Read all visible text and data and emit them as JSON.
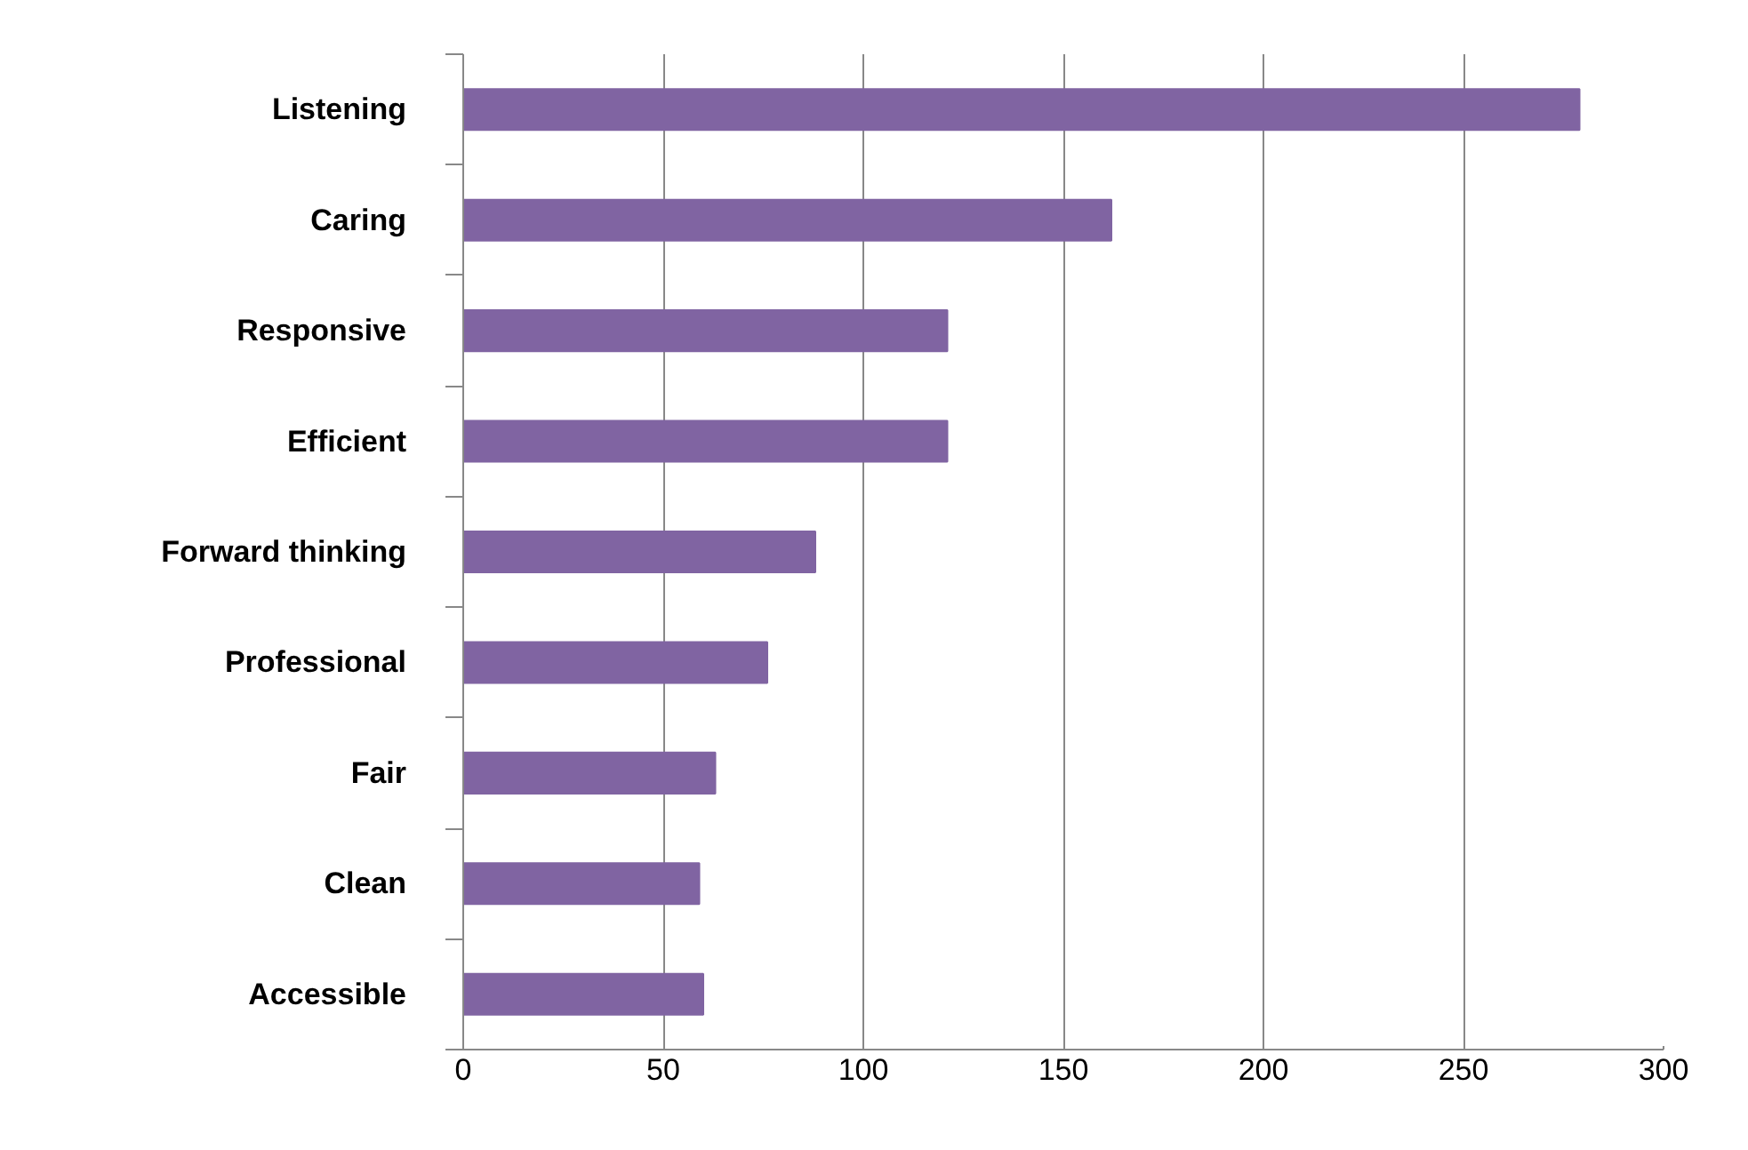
{
  "chart_data": {
    "type": "bar",
    "orientation": "horizontal",
    "categories": [
      "Listening",
      "Caring",
      "Responsive",
      "Efficient",
      "Forward thinking",
      "Professional",
      "Fair",
      "Clean",
      "Accessible"
    ],
    "values": [
      279,
      162,
      121,
      121,
      88,
      76,
      63,
      59,
      60
    ],
    "color": "#8064a2",
    "xlim": [
      0,
      300
    ],
    "xticks": [
      0,
      50,
      100,
      150,
      200,
      250,
      300
    ],
    "grid": "x"
  }
}
